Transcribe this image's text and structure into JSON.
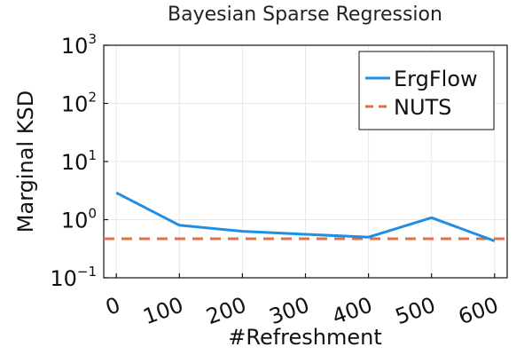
{
  "chart_data": {
    "type": "line",
    "title": "Bayesian Sparse Regression",
    "xlabel": "#Refreshment",
    "ylabel": "Marginal KSD",
    "x_ticks": [
      "0",
      "100",
      "200",
      "300",
      "400",
      "500",
      "600"
    ],
    "xlim": [
      -20,
      620
    ],
    "y_scale": "log",
    "ylim": [
      0.1,
      1000
    ],
    "y_ticks": [
      {
        "value": 0.1,
        "base": "10",
        "exp": "−1"
      },
      {
        "value": 1,
        "base": "10",
        "exp": "0"
      },
      {
        "value": 10,
        "base": "10",
        "exp": "1"
      },
      {
        "value": 100,
        "base": "10",
        "exp": "2"
      },
      {
        "value": 1000,
        "base": "10",
        "exp": "3"
      }
    ],
    "grid": true,
    "legend_position": "top-right",
    "series": [
      {
        "name": "ErgFlow",
        "style": "solid",
        "color": "#1f8fe5",
        "x": [
          0,
          100,
          200,
          300,
          400,
          500,
          600
        ],
        "y": [
          2.9,
          0.8,
          0.63,
          0.56,
          0.5,
          1.08,
          0.43
        ]
      },
      {
        "name": "NUTS",
        "style": "dashed",
        "color": "#e2704a",
        "x": [
          -20,
          620
        ],
        "y": [
          0.47,
          0.47
        ]
      }
    ]
  }
}
